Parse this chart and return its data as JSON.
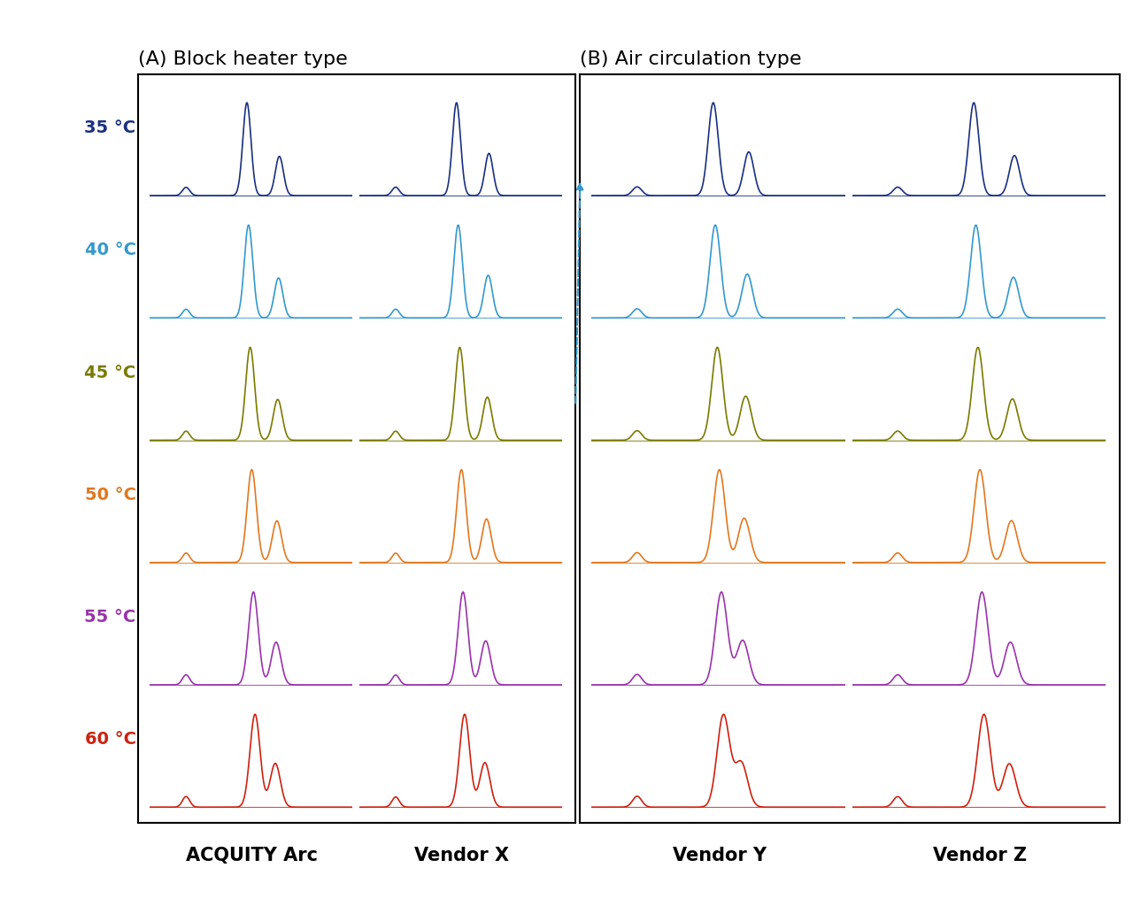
{
  "title_A": "(A) Block heater type",
  "title_B": "(B) Air circulation type",
  "label_A1": "ACQUITY Arc",
  "label_A2": "Vendor X",
  "label_B1": "Vendor Y",
  "label_B2": "Vendor Z",
  "temperatures": [
    "35 °C",
    "40 °C",
    "45 °C",
    "50 °C",
    "55 °C",
    "60 °C"
  ],
  "colors": [
    "#1a3080",
    "#3399cc",
    "#7a7a00",
    "#e07820",
    "#9933aa",
    "#cc2211"
  ],
  "background_color": "#ffffff",
  "arrow_color": "#3399cc"
}
